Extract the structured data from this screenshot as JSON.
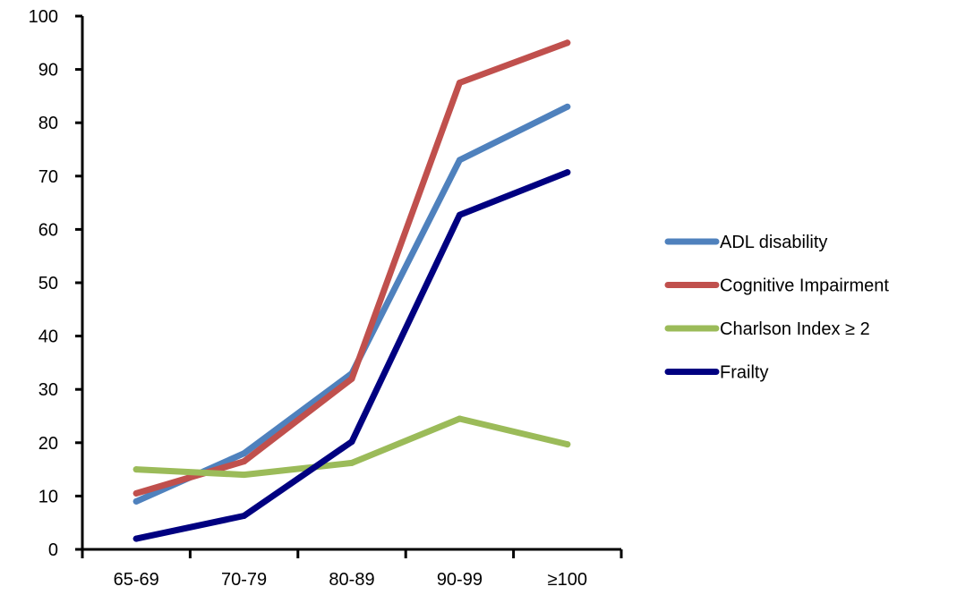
{
  "chart_data": {
    "type": "line",
    "title": "",
    "xlabel": "",
    "ylabel": "",
    "categories": [
      "65-69",
      "70-79",
      "80-89",
      "90-99",
      "≥100"
    ],
    "ylim": [
      0,
      100
    ],
    "yticks": [
      0,
      10,
      20,
      30,
      40,
      50,
      60,
      70,
      80,
      90,
      100
    ],
    "grid": false,
    "legend_position": "right",
    "series": [
      {
        "name": "ADL disability",
        "color": "#4F81BD",
        "values": [
          9,
          18,
          33,
          73,
          83
        ]
      },
      {
        "name": "Cognitive Impairment",
        "color": "#C0504D",
        "values": [
          10.5,
          16.5,
          32,
          87.5,
          95
        ]
      },
      {
        "name": "Charlson Index ≥ 2",
        "color": "#9BBB59",
        "values": [
          15,
          14,
          16.2,
          24.5,
          19.7
        ]
      },
      {
        "name": "Frailty",
        "color": "#000080",
        "values": [
          2,
          6.3,
          20.2,
          62.7,
          70.7
        ]
      }
    ]
  }
}
